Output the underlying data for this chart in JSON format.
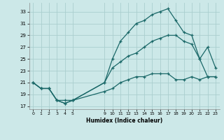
{
  "xlabel": "Humidex (Indice chaleur)",
  "bg_color": "#cce8e8",
  "grid_color": "#aacece",
  "line_color": "#1a6868",
  "ylim": [
    16.5,
    34.5
  ],
  "yticks": [
    17,
    19,
    21,
    23,
    25,
    27,
    29,
    31,
    33
  ],
  "xtick_positions": [
    0,
    1,
    2,
    3,
    4,
    5,
    9,
    10,
    11,
    12,
    13,
    14,
    15,
    16,
    17,
    18,
    19,
    20,
    21,
    22,
    23
  ],
  "xtick_labels": [
    "0",
    "1",
    "2",
    "3",
    "4",
    "5",
    "9",
    "10",
    "11",
    "12",
    "13",
    "14",
    "15",
    "16",
    "17",
    "18",
    "19",
    "20",
    "21",
    "22",
    "23"
  ],
  "xlim": [
    -0.5,
    23.5
  ],
  "line1_x": [
    0,
    1,
    2,
    3,
    4,
    5,
    9,
    10,
    11,
    12,
    13,
    14,
    15,
    16,
    17,
    18,
    19,
    20,
    21,
    22,
    23
  ],
  "line1_y": [
    21,
    20,
    20,
    18,
    17.5,
    18,
    21,
    25,
    28,
    29.5,
    31,
    31.5,
    32.5,
    33,
    33.5,
    31.5,
    29.5,
    29,
    25,
    27,
    23.5
  ],
  "line2_x": [
    0,
    1,
    2,
    3,
    4,
    5,
    9,
    10,
    11,
    12,
    13,
    14,
    15,
    16,
    17,
    18,
    19,
    20,
    21,
    22,
    23
  ],
  "line2_y": [
    21,
    20,
    20,
    18,
    18,
    18,
    21,
    23.5,
    24.5,
    25.5,
    26,
    27,
    28,
    28.5,
    29,
    29,
    28,
    27.5,
    25,
    22,
    22
  ],
  "line3_x": [
    0,
    1,
    2,
    3,
    4,
    5,
    9,
    10,
    11,
    12,
    13,
    14,
    15,
    16,
    17,
    18,
    19,
    20,
    21,
    22,
    23
  ],
  "line3_y": [
    21,
    20,
    20,
    18,
    17.5,
    18,
    19.5,
    20,
    21,
    21.5,
    22,
    22,
    22.5,
    22.5,
    22.5,
    21.5,
    21.5,
    22,
    21.5,
    22,
    22
  ]
}
